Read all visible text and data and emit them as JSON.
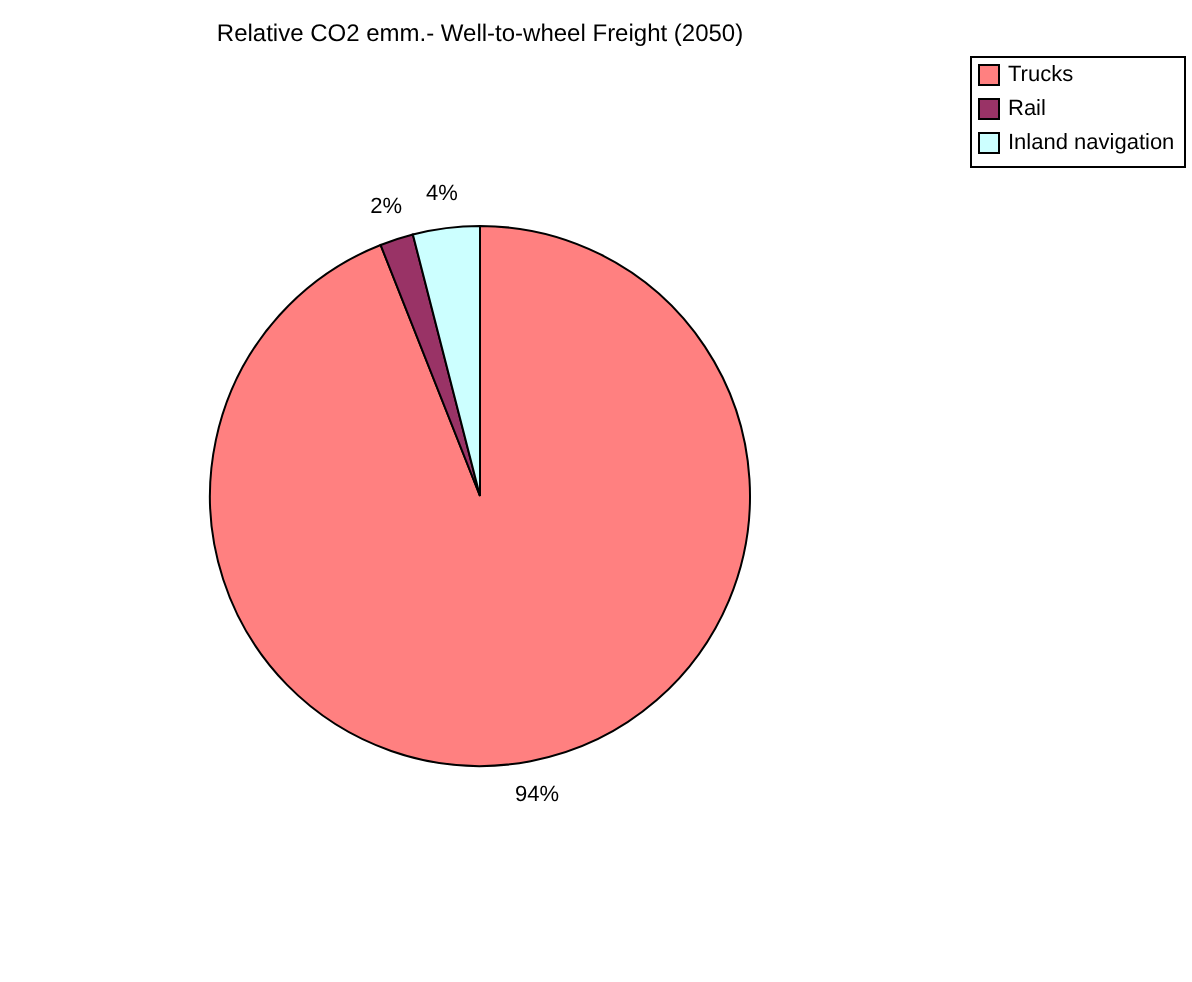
{
  "chart_data": {
    "type": "pie",
    "title": "Relative CO2 emm.- Well-to-wheel Freight (2050)",
    "categories": [
      "Trucks",
      "Rail",
      "Inland navigation"
    ],
    "values": [
      94,
      2,
      4
    ],
    "colors": [
      "#ff8080",
      "#993366",
      "#ccffff"
    ],
    "value_labels": [
      "94%",
      "2%",
      "4%"
    ],
    "legend": "right"
  }
}
